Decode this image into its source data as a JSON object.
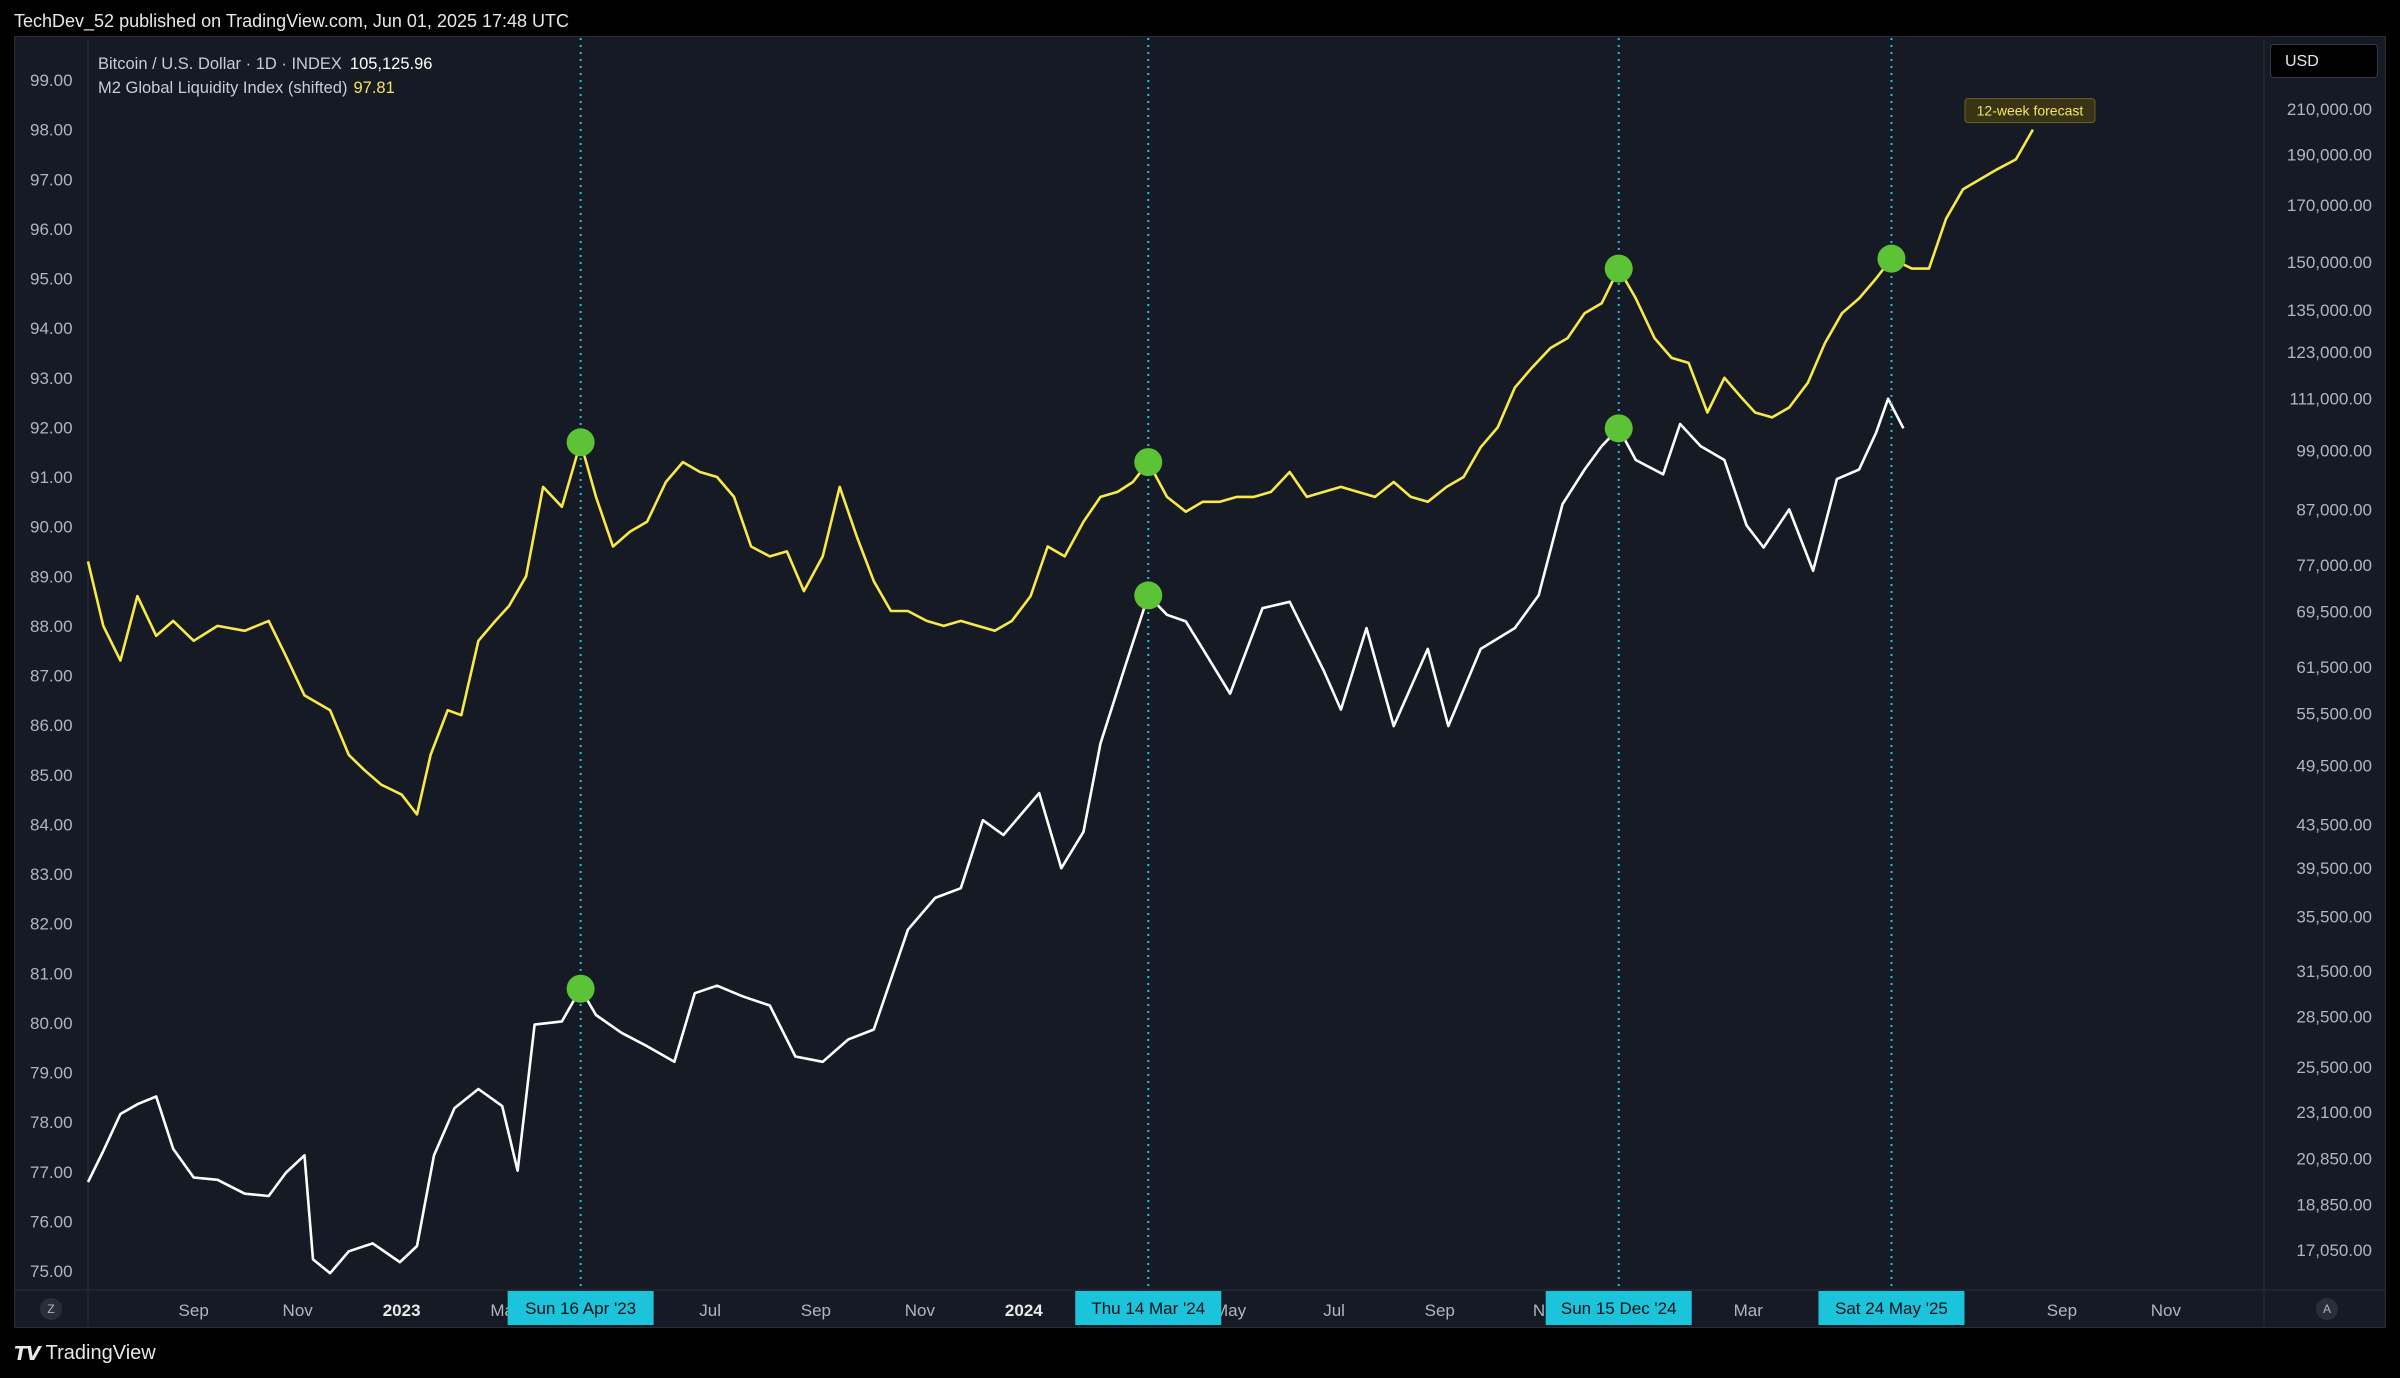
{
  "header": {
    "published": "TechDev_52 published on TradingView.com, Jun 01, 2025 17:48 UTC"
  },
  "legend": {
    "series1_name": "Bitcoin / U.S. Dollar · 1D · INDEX",
    "series1_value": "105,125.96",
    "series2_name": "M2 Global Liquidity Index (shifted)",
    "series2_value": "97.81"
  },
  "currency_button": "USD",
  "footer": {
    "brand": "TradingView"
  },
  "bottom_buttons": {
    "left": "Z",
    "right": "A"
  },
  "colors": {
    "background": "#161a25",
    "btc": "#ffffff",
    "m2": "#f7ea48",
    "vline": "#22c3d6",
    "marker": "#5cc236",
    "date_badge": "#1bc4da"
  },
  "chart_data": {
    "type": "line",
    "left_axis": {
      "ticks": [
        "99.00",
        "98.00",
        "97.00",
        "96.00",
        "95.00",
        "94.00",
        "93.00",
        "92.00",
        "91.00",
        "90.00",
        "89.00",
        "88.00",
        "87.00",
        "86.00",
        "85.00",
        "84.00",
        "83.00",
        "82.00",
        "81.00",
        "80.00",
        "79.00",
        "78.00",
        "77.00",
        "76.00",
        "75.00"
      ],
      "range": [
        74.8,
        99.8
      ]
    },
    "right_axis": {
      "scale": "log",
      "ticks": [
        "210,000.00",
        "190,000.00",
        "170,000.00",
        "150,000.00",
        "135,000.00",
        "123,000.00",
        "111,000.00",
        "99,000.00",
        "87,000.00",
        "77,000.00",
        "69,500.00",
        "61,500.00",
        "55,500.00",
        "49,500.00",
        "43,500.00",
        "39,500.00",
        "35,500.00",
        "31,500.00",
        "28,500.00",
        "25,500.00",
        "23,100.00",
        "20,850.00",
        "18,850.00",
        "17,050.00"
      ]
    },
    "x_axis": {
      "ticks": [
        {
          "label": "Sep",
          "date": "2022-09-01",
          "bold": false
        },
        {
          "label": "Nov",
          "date": "2022-11-01",
          "bold": false
        },
        {
          "label": "2023",
          "date": "2023-01-01",
          "bold": true
        },
        {
          "label": "Ma",
          "date": "2023-03-01",
          "bold": false
        },
        {
          "label": "Jul",
          "date": "2023-07-01",
          "bold": false
        },
        {
          "label": "Sep",
          "date": "2023-09-01",
          "bold": false
        },
        {
          "label": "Nov",
          "date": "2023-11-01",
          "bold": false
        },
        {
          "label": "2024",
          "date": "2024-01-01",
          "bold": true
        },
        {
          "label": "May",
          "date": "2024-05-01",
          "bold": false
        },
        {
          "label": "Jul",
          "date": "2024-07-01",
          "bold": false
        },
        {
          "label": "Sep",
          "date": "2024-09-01",
          "bold": false
        },
        {
          "label": "No",
          "date": "2024-11-01",
          "bold": false
        },
        {
          "label": "Mar",
          "date": "2025-03-01",
          "bold": false
        },
        {
          "label": "l",
          "date": "2025-07-01",
          "bold": false
        },
        {
          "label": "Sep",
          "date": "2025-09-01",
          "bold": false
        },
        {
          "label": "Nov",
          "date": "2025-11-01",
          "bold": false
        }
      ]
    },
    "markers": [
      {
        "label": "Sun 16 Apr '23",
        "date": "2023-04-16"
      },
      {
        "label": "Thu 14 Mar '24",
        "date": "2024-03-14"
      },
      {
        "label": "Sun 15 Dec '24",
        "date": "2024-12-15"
      },
      {
        "label": "Sat 24 May '25",
        "date": "2025-05-24"
      }
    ],
    "annotation": {
      "text": "12-week forecast",
      "date": "2025-08-15",
      "value": 98.1
    },
    "series": [
      {
        "name": "M2 Global Liquidity Index (shifted)",
        "axis": "left",
        "points": [
          [
            "2022-07-01",
            89.3
          ],
          [
            "2022-07-10",
            88.0
          ],
          [
            "2022-07-20",
            87.3
          ],
          [
            "2022-07-30",
            88.6
          ],
          [
            "2022-08-10",
            87.8
          ],
          [
            "2022-08-20",
            88.1
          ],
          [
            "2022-09-01",
            87.7
          ],
          [
            "2022-09-15",
            88.0
          ],
          [
            "2022-10-01",
            87.9
          ],
          [
            "2022-10-15",
            88.1
          ],
          [
            "2022-10-25",
            87.4
          ],
          [
            "2022-11-05",
            86.6
          ],
          [
            "2022-11-20",
            86.3
          ],
          [
            "2022-12-01",
            85.4
          ],
          [
            "2022-12-10",
            85.1
          ],
          [
            "2022-12-20",
            84.8
          ],
          [
            "2023-01-01",
            84.6
          ],
          [
            "2023-01-10",
            84.2
          ],
          [
            "2023-01-18",
            85.4
          ],
          [
            "2023-01-28",
            86.3
          ],
          [
            "2023-02-05",
            86.2
          ],
          [
            "2023-02-15",
            87.7
          ],
          [
            "2023-02-25",
            88.1
          ],
          [
            "2023-03-05",
            88.4
          ],
          [
            "2023-03-15",
            89.0
          ],
          [
            "2023-03-25",
            90.8
          ],
          [
            "2023-04-05",
            90.4
          ],
          [
            "2023-04-16",
            91.7
          ],
          [
            "2023-04-25",
            90.6
          ],
          [
            "2023-05-05",
            89.6
          ],
          [
            "2023-05-15",
            89.9
          ],
          [
            "2023-05-25",
            90.1
          ],
          [
            "2023-06-05",
            90.9
          ],
          [
            "2023-06-15",
            91.3
          ],
          [
            "2023-06-25",
            91.1
          ],
          [
            "2023-07-05",
            91.0
          ],
          [
            "2023-07-15",
            90.6
          ],
          [
            "2023-07-25",
            89.6
          ],
          [
            "2023-08-05",
            89.4
          ],
          [
            "2023-08-15",
            89.5
          ],
          [
            "2023-08-25",
            88.7
          ],
          [
            "2023-09-05",
            89.4
          ],
          [
            "2023-09-15",
            90.8
          ],
          [
            "2023-09-25",
            89.8
          ],
          [
            "2023-10-05",
            88.9
          ],
          [
            "2023-10-15",
            88.3
          ],
          [
            "2023-10-25",
            88.3
          ],
          [
            "2023-11-05",
            88.1
          ],
          [
            "2023-11-15",
            88.0
          ],
          [
            "2023-11-25",
            88.1
          ],
          [
            "2023-12-05",
            88.0
          ],
          [
            "2023-12-15",
            87.9
          ],
          [
            "2023-12-25",
            88.1
          ],
          [
            "2024-01-05",
            88.6
          ],
          [
            "2024-01-15",
            89.6
          ],
          [
            "2024-01-25",
            89.4
          ],
          [
            "2024-02-05",
            90.1
          ],
          [
            "2024-02-15",
            90.6
          ],
          [
            "2024-02-25",
            90.7
          ],
          [
            "2024-03-05",
            90.9
          ],
          [
            "2024-03-14",
            91.3
          ],
          [
            "2024-03-25",
            90.6
          ],
          [
            "2024-04-05",
            90.3
          ],
          [
            "2024-04-15",
            90.5
          ],
          [
            "2024-04-25",
            90.5
          ],
          [
            "2024-05-05",
            90.6
          ],
          [
            "2024-05-15",
            90.6
          ],
          [
            "2024-05-25",
            90.7
          ],
          [
            "2024-06-05",
            91.1
          ],
          [
            "2024-06-15",
            90.6
          ],
          [
            "2024-06-25",
            90.7
          ],
          [
            "2024-07-05",
            90.8
          ],
          [
            "2024-07-15",
            90.7
          ],
          [
            "2024-07-25",
            90.6
          ],
          [
            "2024-08-05",
            90.9
          ],
          [
            "2024-08-15",
            90.6
          ],
          [
            "2024-08-25",
            90.5
          ],
          [
            "2024-09-05",
            90.8
          ],
          [
            "2024-09-15",
            91.0
          ],
          [
            "2024-09-25",
            91.6
          ],
          [
            "2024-10-05",
            92.0
          ],
          [
            "2024-10-15",
            92.8
          ],
          [
            "2024-10-25",
            93.2
          ],
          [
            "2024-11-05",
            93.6
          ],
          [
            "2024-11-15",
            93.8
          ],
          [
            "2024-11-25",
            94.3
          ],
          [
            "2024-12-05",
            94.5
          ],
          [
            "2024-12-15",
            95.2
          ],
          [
            "2024-12-25",
            94.6
          ],
          [
            "2025-01-05",
            93.8
          ],
          [
            "2025-01-15",
            93.4
          ],
          [
            "2025-01-25",
            93.3
          ],
          [
            "2025-02-05",
            92.3
          ],
          [
            "2025-02-15",
            93.0
          ],
          [
            "2025-02-25",
            92.6
          ],
          [
            "2025-03-05",
            92.3
          ],
          [
            "2025-03-15",
            92.2
          ],
          [
            "2025-03-25",
            92.4
          ],
          [
            "2025-04-05",
            92.9
          ],
          [
            "2025-04-15",
            93.7
          ],
          [
            "2025-04-25",
            94.3
          ],
          [
            "2025-05-05",
            94.6
          ],
          [
            "2025-05-15",
            95.0
          ],
          [
            "2025-05-24",
            95.4
          ],
          [
            "2025-06-05",
            95.2
          ],
          [
            "2025-06-15",
            95.2
          ],
          [
            "2025-06-25",
            96.2
          ],
          [
            "2025-07-05",
            96.8
          ],
          [
            "2025-07-15",
            97.0
          ],
          [
            "2025-07-25",
            97.2
          ],
          [
            "2025-08-05",
            97.4
          ],
          [
            "2025-08-15",
            98.0
          ]
        ]
      },
      {
        "name": "Bitcoin / U.S. Dollar · 1D · INDEX",
        "axis": "right",
        "points": [
          [
            "2022-07-01",
            19800
          ],
          [
            "2022-07-10",
            21200
          ],
          [
            "2022-07-20",
            23000
          ],
          [
            "2022-07-30",
            23500
          ],
          [
            "2022-08-10",
            23900
          ],
          [
            "2022-08-20",
            21300
          ],
          [
            "2022-09-01",
            20000
          ],
          [
            "2022-09-15",
            19900
          ],
          [
            "2022-10-01",
            19300
          ],
          [
            "2022-10-15",
            19200
          ],
          [
            "2022-10-25",
            20200
          ],
          [
            "2022-11-05",
            21000
          ],
          [
            "2022-11-10",
            16700
          ],
          [
            "2022-11-20",
            16200
          ],
          [
            "2022-12-01",
            17000
          ],
          [
            "2022-12-15",
            17300
          ],
          [
            "2022-12-31",
            16600
          ],
          [
            "2023-01-10",
            17200
          ],
          [
            "2023-01-20",
            21000
          ],
          [
            "2023-02-01",
            23300
          ],
          [
            "2023-02-15",
            24300
          ],
          [
            "2023-03-01",
            23400
          ],
          [
            "2023-03-10",
            20300
          ],
          [
            "2023-03-20",
            28000
          ],
          [
            "2023-04-05",
            28200
          ],
          [
            "2023-04-16",
            30300
          ],
          [
            "2023-04-25",
            28600
          ],
          [
            "2023-05-10",
            27500
          ],
          [
            "2023-05-25",
            26700
          ],
          [
            "2023-06-10",
            25800
          ],
          [
            "2023-06-22",
            30000
          ],
          [
            "2023-07-05",
            30500
          ],
          [
            "2023-07-20",
            29800
          ],
          [
            "2023-08-05",
            29200
          ],
          [
            "2023-08-20",
            26100
          ],
          [
            "2023-09-05",
            25800
          ],
          [
            "2023-09-20",
            27100
          ],
          [
            "2023-10-05",
            27700
          ],
          [
            "2023-10-25",
            34500
          ],
          [
            "2023-11-10",
            37000
          ],
          [
            "2023-11-25",
            37800
          ],
          [
            "2023-12-08",
            43900
          ],
          [
            "2023-12-20",
            42500
          ],
          [
            "2024-01-10",
            46600
          ],
          [
            "2024-01-23",
            39500
          ],
          [
            "2024-02-05",
            42800
          ],
          [
            "2024-02-15",
            52000
          ],
          [
            "2024-03-01",
            62000
          ],
          [
            "2024-03-14",
            72000
          ],
          [
            "2024-03-25",
            69000
          ],
          [
            "2024-04-05",
            68000
          ],
          [
            "2024-04-15",
            64000
          ],
          [
            "2024-05-01",
            58000
          ],
          [
            "2024-05-20",
            70000
          ],
          [
            "2024-06-05",
            71000
          ],
          [
            "2024-06-25",
            61000
          ],
          [
            "2024-07-05",
            56000
          ],
          [
            "2024-07-20",
            67000
          ],
          [
            "2024-08-05",
            54000
          ],
          [
            "2024-08-25",
            64000
          ],
          [
            "2024-09-06",
            54000
          ],
          [
            "2024-09-25",
            64000
          ],
          [
            "2024-10-15",
            67000
          ],
          [
            "2024-10-29",
            72000
          ],
          [
            "2024-11-12",
            88000
          ],
          [
            "2024-11-25",
            95000
          ],
          [
            "2024-12-05",
            100000
          ],
          [
            "2024-12-15",
            104000
          ],
          [
            "2024-12-25",
            97000
          ],
          [
            "2025-01-10",
            94000
          ],
          [
            "2025-01-20",
            105000
          ],
          [
            "2025-02-01",
            100000
          ],
          [
            "2025-02-15",
            97000
          ],
          [
            "2025-02-28",
            84000
          ],
          [
            "2025-03-10",
            80000
          ],
          [
            "2025-03-25",
            87000
          ],
          [
            "2025-04-08",
            76000
          ],
          [
            "2025-04-22",
            93000
          ],
          [
            "2025-05-05",
            95000
          ],
          [
            "2025-05-15",
            103000
          ],
          [
            "2025-05-22",
            111000
          ],
          [
            "2025-05-31",
            104000
          ]
        ]
      }
    ]
  }
}
